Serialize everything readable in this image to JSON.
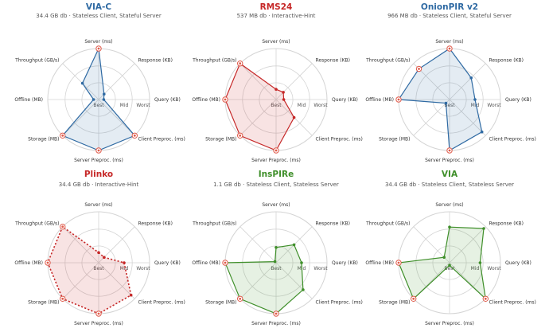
{
  "colors": {
    "blue": "#2f6aa3",
    "red": "#c62828",
    "green": "#3f8f2a",
    "grid": "#d4d4d4",
    "axis_text": "#333333",
    "marker": "#e05a4a"
  },
  "axes": [
    "Server (ms)",
    "Response (KB)",
    "Query (KB)",
    "Client Preproc. (ms)",
    "Server Preproc. (ms)",
    "Storage (MB)",
    "Offline (MB)",
    "Throughput (GB/s)"
  ],
  "scale_labels": {
    "best": "Best",
    "mid": "Mid",
    "worst": "Worst"
  },
  "chart_data": [
    {
      "type": "radar",
      "title": "VIA-C",
      "subtitle": "34.4 GB db · Stateless Client, Stateful Server",
      "color": "#2f6aa3",
      "style": "solid",
      "values": [
        1.0,
        0.15,
        0.1,
        1.0,
        1.0,
        1.0,
        0.1,
        0.45
      ],
      "markers": [
        0,
        3,
        4,
        5
      ]
    },
    {
      "type": "radar",
      "title": "RMS24",
      "subtitle": "537 MB db · Interactive-Hint",
      "color": "#c62828",
      "style": "solid",
      "values": [
        0.2,
        0.2,
        0.15,
        0.5,
        1.0,
        1.0,
        1.0,
        1.0
      ],
      "markers": [
        4,
        5,
        6,
        7
      ]
    },
    {
      "type": "radar",
      "title": "OnionPIR v2",
      "subtitle": "966 MB db · Stateless Client, Stateful Server",
      "color": "#2f6aa3",
      "style": "solid",
      "values": [
        1.0,
        0.6,
        0.5,
        0.9,
        1.0,
        0.1,
        1.0,
        0.85
      ],
      "markers": [
        0,
        4,
        6,
        7
      ]
    },
    {
      "type": "radar",
      "title": "Plinko",
      "subtitle": "34.4 GB db · Interactive-Hint",
      "color": "#c62828",
      "style": "dotted",
      "values": [
        0.2,
        0.15,
        0.5,
        0.9,
        1.0,
        1.0,
        1.0,
        1.0
      ],
      "markers": [
        4,
        5,
        6,
        7
      ]
    },
    {
      "type": "radar",
      "title": "InsPIRe",
      "subtitle": "1.1 GB db · Stateless Client, Stateless Server",
      "color": "#3f8f2a",
      "style": "solid",
      "values": [
        0.3,
        0.5,
        0.5,
        0.75,
        1.0,
        1.0,
        1.0,
        0.03
      ],
      "markers": [
        4,
        5,
        6
      ]
    },
    {
      "type": "radar",
      "title": "VIA",
      "subtitle": "34.4 GB db · Stateless Client, Stateless Server",
      "color": "#3f8f2a",
      "style": "solid",
      "values": [
        0.7,
        0.95,
        0.6,
        1.0,
        0.05,
        1.0,
        1.0,
        0.15
      ],
      "markers": [
        3,
        5,
        6
      ]
    }
  ]
}
